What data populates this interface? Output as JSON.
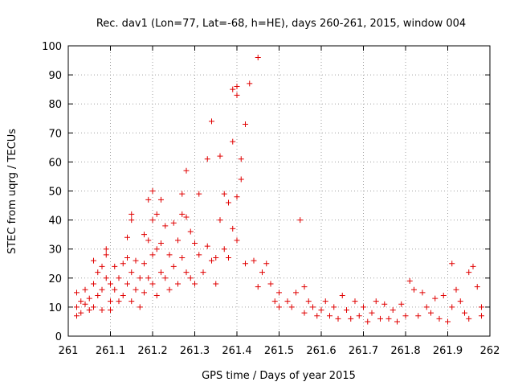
{
  "chart_data": {
    "type": "scatter",
    "title": "Rec. dav1 (Lon=77, Lat=-68, h=HE), days 260-261, 2015, window 004",
    "xlabel": "GPS time / Days of year 2015",
    "ylabel": "STEC from uqrg / TECUs",
    "xlim": [
      261,
      262
    ],
    "ylim": [
      0,
      100
    ],
    "xticks": [
      261,
      261.1,
      261.2,
      261.3,
      261.4,
      261.5,
      261.6,
      261.7,
      261.8,
      261.9,
      262
    ],
    "xtick_labels": [
      "261",
      "261.1",
      "261.2",
      "261.3",
      "261.4",
      "261.5",
      "261.6",
      "261.7",
      "261.8",
      "261.9",
      "262"
    ],
    "yticks": [
      0,
      10,
      20,
      30,
      40,
      50,
      60,
      70,
      80,
      90,
      100
    ],
    "ytick_labels": [
      "0",
      "10",
      "20",
      "30",
      "40",
      "50",
      "60",
      "70",
      "80",
      "90",
      "100"
    ],
    "grid": true,
    "marker": "+",
    "series": [
      {
        "name": "STEC",
        "color": "#e00000",
        "points": [
          [
            261.02,
            15
          ],
          [
            261.02,
            10
          ],
          [
            261.02,
            7
          ],
          [
            261.03,
            12
          ],
          [
            261.03,
            8
          ],
          [
            261.04,
            16
          ],
          [
            261.04,
            11
          ],
          [
            261.05,
            9
          ],
          [
            261.05,
            13
          ],
          [
            261.06,
            26
          ],
          [
            261.06,
            18
          ],
          [
            261.06,
            10
          ],
          [
            261.07,
            22
          ],
          [
            261.07,
            14
          ],
          [
            261.08,
            24
          ],
          [
            261.08,
            16
          ],
          [
            261.08,
            9
          ],
          [
            261.09,
            30
          ],
          [
            261.09,
            28
          ],
          [
            261.09,
            20
          ],
          [
            261.1,
            18
          ],
          [
            261.1,
            12
          ],
          [
            261.1,
            9
          ],
          [
            261.11,
            24
          ],
          [
            261.11,
            16
          ],
          [
            261.12,
            20
          ],
          [
            261.12,
            12
          ],
          [
            261.13,
            25
          ],
          [
            261.13,
            14
          ],
          [
            261.14,
            34
          ],
          [
            261.14,
            27
          ],
          [
            261.14,
            18
          ],
          [
            261.15,
            42
          ],
          [
            261.15,
            40
          ],
          [
            261.15,
            22
          ],
          [
            261.15,
            12
          ],
          [
            261.16,
            26
          ],
          [
            261.16,
            16
          ],
          [
            261.17,
            20
          ],
          [
            261.17,
            10
          ],
          [
            261.18,
            35
          ],
          [
            261.18,
            25
          ],
          [
            261.18,
            15
          ],
          [
            261.19,
            47
          ],
          [
            261.19,
            33
          ],
          [
            261.19,
            20
          ],
          [
            261.2,
            50
          ],
          [
            261.2,
            40
          ],
          [
            261.2,
            28
          ],
          [
            261.2,
            18
          ],
          [
            261.21,
            42
          ],
          [
            261.21,
            30
          ],
          [
            261.21,
            14
          ],
          [
            261.22,
            47
          ],
          [
            261.22,
            32
          ],
          [
            261.22,
            22
          ],
          [
            261.23,
            38
          ],
          [
            261.23,
            20
          ],
          [
            261.24,
            28
          ],
          [
            261.24,
            16
          ],
          [
            261.25,
            39
          ],
          [
            261.25,
            24
          ],
          [
            261.26,
            33
          ],
          [
            261.26,
            18
          ],
          [
            261.27,
            49
          ],
          [
            261.27,
            42
          ],
          [
            261.27,
            27
          ],
          [
            261.28,
            57
          ],
          [
            261.28,
            41
          ],
          [
            261.28,
            22
          ],
          [
            261.29,
            36
          ],
          [
            261.29,
            20
          ],
          [
            261.3,
            32
          ],
          [
            261.3,
            18
          ],
          [
            261.31,
            49
          ],
          [
            261.31,
            28
          ],
          [
            261.32,
            22
          ],
          [
            261.33,
            61
          ],
          [
            261.33,
            31
          ],
          [
            261.34,
            74
          ],
          [
            261.34,
            26
          ],
          [
            261.35,
            27
          ],
          [
            261.35,
            18
          ],
          [
            261.36,
            62
          ],
          [
            261.36,
            40
          ],
          [
            261.37,
            49
          ],
          [
            261.37,
            30
          ],
          [
            261.38,
            46
          ],
          [
            261.38,
            27
          ],
          [
            261.39,
            85
          ],
          [
            261.39,
            67
          ],
          [
            261.39,
            37
          ],
          [
            261.4,
            86
          ],
          [
            261.4,
            83
          ],
          [
            261.4,
            48
          ],
          [
            261.4,
            33
          ],
          [
            261.41,
            61
          ],
          [
            261.41,
            54
          ],
          [
            261.42,
            73
          ],
          [
            261.42,
            25
          ],
          [
            261.43,
            87
          ],
          [
            261.44,
            26
          ],
          [
            261.45,
            96
          ],
          [
            261.45,
            17
          ],
          [
            261.46,
            22
          ],
          [
            261.47,
            25
          ],
          [
            261.48,
            18
          ],
          [
            261.49,
            12
          ],
          [
            261.5,
            15
          ],
          [
            261.5,
            10
          ],
          [
            261.52,
            12
          ],
          [
            261.53,
            10
          ],
          [
            261.54,
            15
          ],
          [
            261.55,
            40
          ],
          [
            261.56,
            17
          ],
          [
            261.56,
            8
          ],
          [
            261.57,
            12
          ],
          [
            261.58,
            10
          ],
          [
            261.59,
            7
          ],
          [
            261.6,
            9
          ],
          [
            261.61,
            12
          ],
          [
            261.62,
            7
          ],
          [
            261.63,
            10
          ],
          [
            261.64,
            6
          ],
          [
            261.65,
            14
          ],
          [
            261.66,
            9
          ],
          [
            261.67,
            6
          ],
          [
            261.68,
            12
          ],
          [
            261.69,
            7
          ],
          [
            261.7,
            10
          ],
          [
            261.71,
            5
          ],
          [
            261.72,
            8
          ],
          [
            261.73,
            12
          ],
          [
            261.74,
            6
          ],
          [
            261.75,
            11
          ],
          [
            261.76,
            6
          ],
          [
            261.77,
            9
          ],
          [
            261.78,
            5
          ],
          [
            261.79,
            11
          ],
          [
            261.8,
            7
          ],
          [
            261.81,
            19
          ],
          [
            261.82,
            16
          ],
          [
            261.83,
            7
          ],
          [
            261.84,
            15
          ],
          [
            261.85,
            10
          ],
          [
            261.86,
            8
          ],
          [
            261.87,
            13
          ],
          [
            261.88,
            6
          ],
          [
            261.89,
            14
          ],
          [
            261.9,
            5
          ],
          [
            261.91,
            25
          ],
          [
            261.91,
            10
          ],
          [
            261.92,
            16
          ],
          [
            261.93,
            12
          ],
          [
            261.94,
            8
          ],
          [
            261.95,
            22
          ],
          [
            261.95,
            6
          ],
          [
            261.96,
            24
          ],
          [
            261.97,
            17
          ],
          [
            261.98,
            10
          ],
          [
            261.98,
            7
          ]
        ]
      }
    ]
  }
}
